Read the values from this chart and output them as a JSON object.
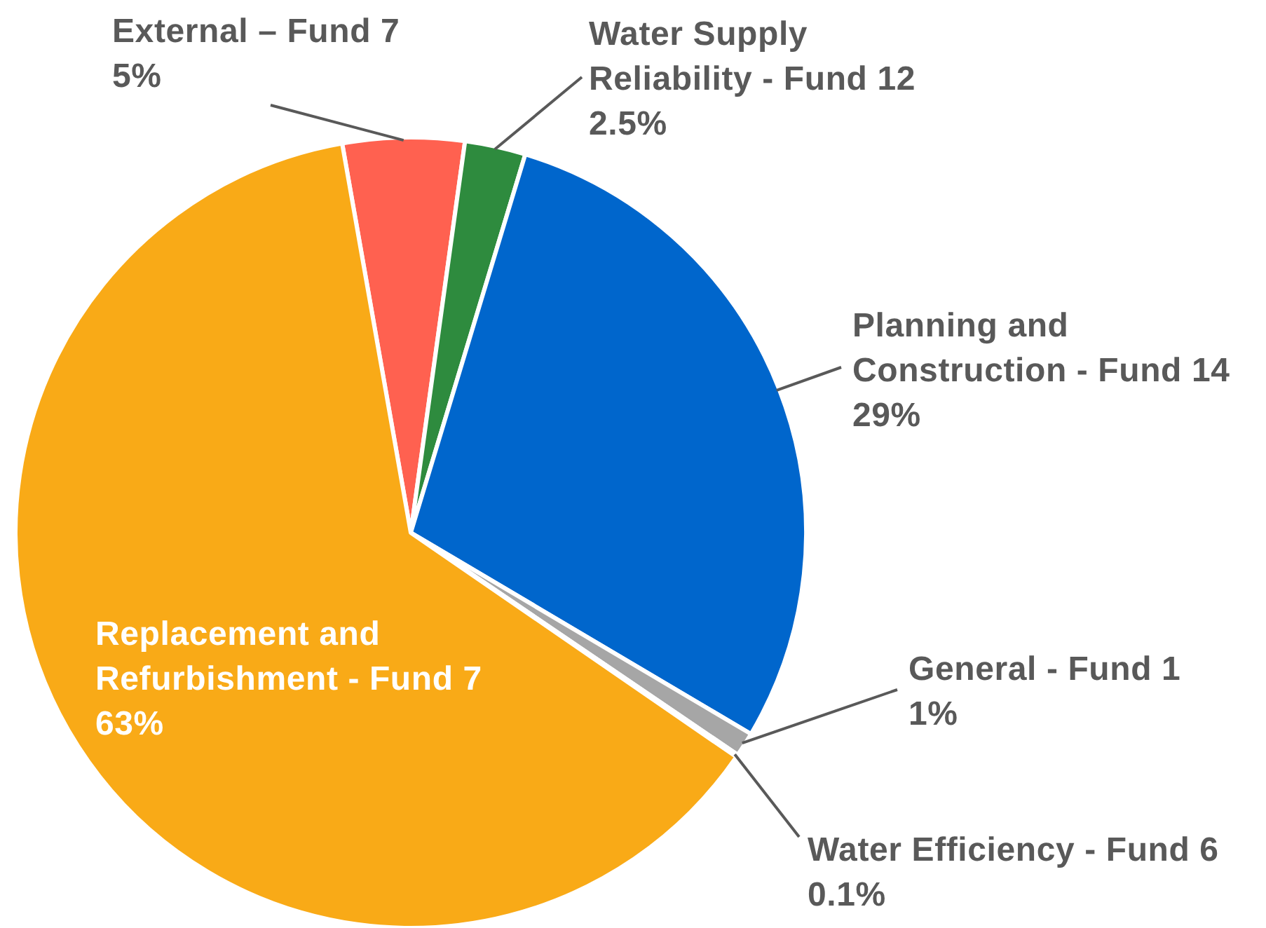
{
  "chart_data": {
    "type": "pie",
    "categories": [
      "External – Fund 7",
      "Water Supply Reliability - Fund 12",
      "Planning and Construction - Fund 14",
      "General - Fund 1",
      "Water Efficiency - Fund 6",
      "Replacement and Refurbishment - Fund 7"
    ],
    "values": [
      5,
      2.5,
      29,
      1,
      0.1,
      63
    ],
    "value_labels": [
      "5%",
      "2.5%",
      "29%",
      "1%",
      "0.1%",
      "63%"
    ],
    "colors": [
      "#ff6150",
      "#2e8b3e",
      "#0066cc",
      "#a6a6a6",
      "#d9d9d9",
      "#f9aa17"
    ]
  }
}
